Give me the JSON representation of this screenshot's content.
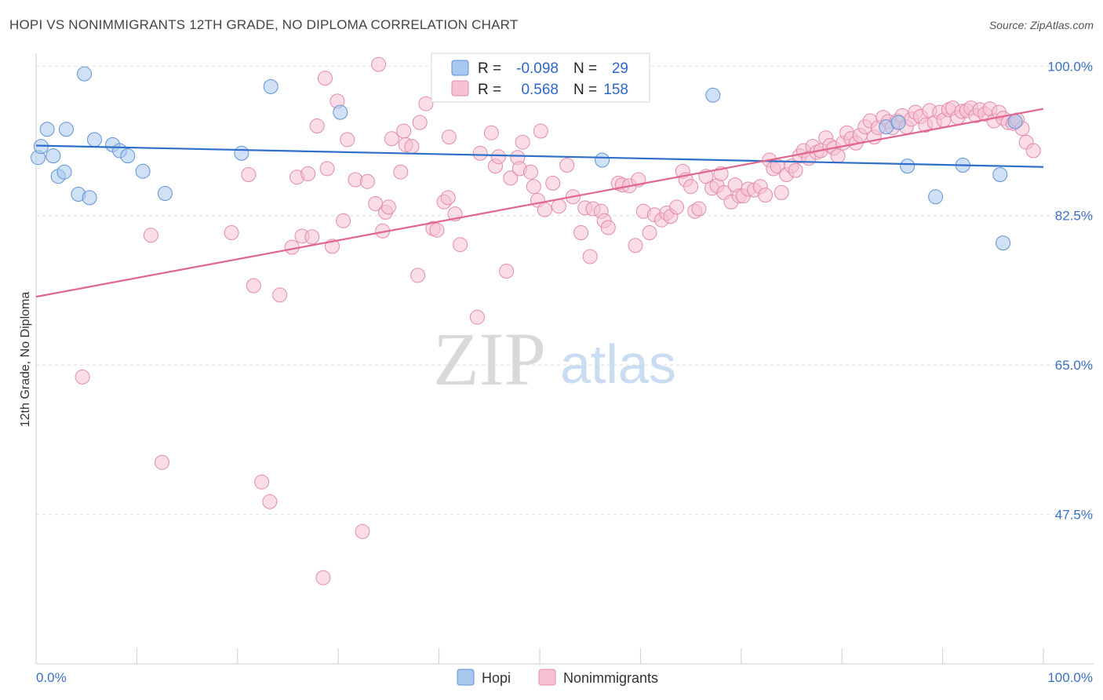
{
  "title": "HOPI VS NONIMMIGRANTS 12TH GRADE, NO DIPLOMA CORRELATION CHART",
  "source": "Source: ZipAtlas.com",
  "watermark": {
    "part1": "ZIP",
    "part2": "atlas"
  },
  "colors": {
    "hopi_fill": "#a9c8ef",
    "hopi_stroke": "#5f92d6",
    "hopi_line": "#2f6fcc",
    "non_fill": "#f6c1d2",
    "non_stroke": "#e38aaa",
    "non_line": "#e0668f",
    "tick_text": "#3b6fc4",
    "grid": "#dddddd"
  },
  "legend": {
    "rows": [
      {
        "r_label": "R =",
        "r_value": "-0.098",
        "n_label": "N =",
        "n_value": "29"
      },
      {
        "r_label": "R =",
        "r_value": "0.568",
        "n_label": "N =",
        "n_value": "158"
      }
    ]
  },
  "bottom_legend": [
    "Hopi",
    "Nonimmigrants"
  ],
  "chart_data": {
    "type": "scatter",
    "title": "HOPI VS NONIMMIGRANTS 12TH GRADE, NO DIPLOMA CORRELATION CHART",
    "xlabel": "",
    "ylabel": "12th Grade, No Diploma",
    "xlim": [
      0,
      100
    ],
    "ylim": [
      30,
      101.5
    ],
    "x_tick_labels": [
      "0.0%",
      "100.0%"
    ],
    "y_ticks": [
      100.0,
      82.5,
      65.0,
      47.5
    ],
    "y_tick_labels": [
      "100.0%",
      "82.5%",
      "65.0%",
      "47.5%"
    ],
    "grid": true,
    "legend_position": "top-center",
    "series": [
      {
        "name": "Hopi",
        "R": -0.098,
        "N": 29,
        "trend": {
          "x": [
            0,
            100
          ],
          "y": [
            90.7,
            88.2
          ]
        },
        "points": [
          [
            0.2,
            89.3
          ],
          [
            0.5,
            90.6
          ],
          [
            1.1,
            92.6
          ],
          [
            1.7,
            89.5
          ],
          [
            2.2,
            87.1
          ],
          [
            2.8,
            87.6
          ],
          [
            3.0,
            92.6
          ],
          [
            4.2,
            85.0
          ],
          [
            4.8,
            99.1
          ],
          [
            5.3,
            84.6
          ],
          [
            5.8,
            91.4
          ],
          [
            7.6,
            90.8
          ],
          [
            8.3,
            90.1
          ],
          [
            9.1,
            89.5
          ],
          [
            10.6,
            87.7
          ],
          [
            12.8,
            85.1
          ],
          [
            20.4,
            89.8
          ],
          [
            23.3,
            97.6
          ],
          [
            30.2,
            94.6
          ],
          [
            56.2,
            89.0
          ],
          [
            67.2,
            96.6
          ],
          [
            84.4,
            92.9
          ],
          [
            85.6,
            93.4
          ],
          [
            86.5,
            88.3
          ],
          [
            89.3,
            84.7
          ],
          [
            92.0,
            88.4
          ],
          [
            95.7,
            87.3
          ],
          [
            96.0,
            79.3
          ],
          [
            97.2,
            93.5
          ]
        ]
      },
      {
        "name": "Nonimmigrants",
        "R": 0.568,
        "N": 158,
        "trend": {
          "x": [
            0,
            100
          ],
          "y": [
            73.0,
            95.0
          ]
        },
        "points": [
          [
            4.6,
            63.6
          ],
          [
            11.4,
            80.2
          ],
          [
            12.5,
            53.6
          ],
          [
            19.4,
            80.5
          ],
          [
            21.1,
            87.3
          ],
          [
            21.6,
            74.3
          ],
          [
            22.4,
            51.3
          ],
          [
            23.2,
            49.0
          ],
          [
            24.2,
            73.2
          ],
          [
            25.4,
            78.8
          ],
          [
            25.9,
            87.0
          ],
          [
            26.4,
            80.1
          ],
          [
            27.0,
            87.4
          ],
          [
            27.4,
            80.0
          ],
          [
            27.9,
            93.0
          ],
          [
            28.5,
            40.1
          ],
          [
            28.7,
            98.6
          ],
          [
            28.9,
            88.0
          ],
          [
            29.4,
            78.9
          ],
          [
            29.9,
            95.9
          ],
          [
            30.5,
            81.9
          ],
          [
            30.9,
            91.4
          ],
          [
            31.7,
            86.7
          ],
          [
            32.4,
            45.5
          ],
          [
            32.9,
            86.5
          ],
          [
            33.7,
            83.9
          ],
          [
            34.0,
            100.2
          ],
          [
            34.4,
            80.7
          ],
          [
            34.7,
            82.9
          ],
          [
            35.0,
            83.5
          ],
          [
            35.3,
            91.5
          ],
          [
            36.2,
            87.6
          ],
          [
            36.5,
            92.4
          ],
          [
            36.7,
            90.8
          ],
          [
            37.3,
            90.6
          ],
          [
            37.9,
            75.5
          ],
          [
            38.1,
            93.4
          ],
          [
            38.7,
            95.6
          ],
          [
            39.4,
            81.0
          ],
          [
            39.8,
            80.8
          ],
          [
            40.5,
            84.1
          ],
          [
            40.9,
            84.6
          ],
          [
            41.0,
            91.7
          ],
          [
            41.6,
            82.7
          ],
          [
            42.1,
            79.1
          ],
          [
            43.8,
            70.6
          ],
          [
            44.1,
            89.8
          ],
          [
            45.2,
            92.2
          ],
          [
            45.6,
            88.3
          ],
          [
            45.9,
            89.4
          ],
          [
            46.7,
            76.0
          ],
          [
            47.1,
            86.9
          ],
          [
            47.8,
            89.3
          ],
          [
            48.0,
            88.0
          ],
          [
            48.3,
            91.1
          ],
          [
            49.1,
            87.6
          ],
          [
            49.4,
            85.9
          ],
          [
            49.8,
            84.3
          ],
          [
            50.1,
            92.4
          ],
          [
            50.5,
            83.2
          ],
          [
            51.3,
            86.3
          ],
          [
            51.9,
            83.6
          ],
          [
            52.7,
            88.4
          ],
          [
            53.3,
            84.7
          ],
          [
            54.1,
            80.5
          ],
          [
            54.5,
            83.4
          ],
          [
            55.0,
            77.7
          ],
          [
            55.3,
            83.3
          ],
          [
            56.1,
            83.0
          ],
          [
            56.4,
            81.9
          ],
          [
            56.8,
            81.1
          ],
          [
            57.8,
            86.3
          ],
          [
            58.2,
            86.1
          ],
          [
            58.9,
            86.0
          ],
          [
            59.5,
            79.0
          ],
          [
            59.8,
            86.7
          ],
          [
            60.3,
            83.0
          ],
          [
            60.9,
            80.5
          ],
          [
            61.4,
            82.6
          ],
          [
            62.1,
            82.0
          ],
          [
            62.6,
            82.8
          ],
          [
            63.0,
            82.4
          ],
          [
            63.6,
            83.5
          ],
          [
            64.2,
            87.7
          ],
          [
            64.5,
            86.7
          ],
          [
            65.0,
            85.9
          ],
          [
            65.4,
            83.0
          ],
          [
            65.8,
            83.3
          ],
          [
            66.5,
            87.1
          ],
          [
            67.1,
            85.7
          ],
          [
            67.6,
            86.0
          ],
          [
            68.0,
            87.4
          ],
          [
            68.3,
            85.2
          ],
          [
            69.0,
            84.1
          ],
          [
            69.4,
            86.1
          ],
          [
            69.8,
            84.8
          ],
          [
            70.2,
            84.8
          ],
          [
            70.7,
            85.6
          ],
          [
            71.3,
            85.5
          ],
          [
            71.9,
            85.9
          ],
          [
            72.4,
            84.9
          ],
          [
            72.8,
            89.0
          ],
          [
            73.2,
            88.0
          ],
          [
            73.6,
            88.3
          ],
          [
            74.0,
            85.2
          ],
          [
            74.5,
            87.3
          ],
          [
            75.0,
            88.3
          ],
          [
            75.4,
            87.8
          ],
          [
            75.8,
            89.5
          ],
          [
            76.2,
            90.1
          ],
          [
            76.7,
            89.2
          ],
          [
            77.1,
            90.6
          ],
          [
            77.5,
            89.9
          ],
          [
            77.9,
            90.1
          ],
          [
            78.4,
            91.6
          ],
          [
            78.8,
            90.7
          ],
          [
            79.2,
            90.4
          ],
          [
            79.6,
            89.5
          ],
          [
            80.1,
            91.0
          ],
          [
            80.5,
            92.2
          ],
          [
            80.9,
            91.5
          ],
          [
            81.4,
            91.0
          ],
          [
            81.8,
            91.9
          ],
          [
            82.3,
            92.9
          ],
          [
            82.8,
            93.6
          ],
          [
            83.2,
            91.7
          ],
          [
            83.6,
            92.8
          ],
          [
            84.1,
            94.0
          ],
          [
            84.6,
            93.5
          ],
          [
            85.0,
            92.8
          ],
          [
            85.5,
            93.6
          ],
          [
            86.0,
            94.2
          ],
          [
            86.4,
            92.9
          ],
          [
            86.9,
            93.8
          ],
          [
            87.3,
            94.6
          ],
          [
            87.8,
            94.1
          ],
          [
            88.3,
            93.1
          ],
          [
            88.7,
            94.8
          ],
          [
            89.2,
            93.4
          ],
          [
            89.7,
            94.6
          ],
          [
            90.1,
            93.7
          ],
          [
            90.6,
            94.9
          ],
          [
            91.0,
            95.1
          ],
          [
            91.5,
            94.0
          ],
          [
            91.9,
            94.7
          ],
          [
            92.4,
            94.8
          ],
          [
            92.8,
            95.1
          ],
          [
            93.3,
            94.2
          ],
          [
            93.7,
            94.9
          ],
          [
            94.2,
            94.4
          ],
          [
            94.7,
            95.0
          ],
          [
            95.1,
            93.6
          ],
          [
            95.6,
            94.6
          ],
          [
            96.0,
            93.9
          ],
          [
            96.5,
            93.4
          ],
          [
            97.0,
            93.3
          ],
          [
            97.4,
            93.7
          ],
          [
            97.9,
            92.7
          ],
          [
            98.3,
            91.1
          ],
          [
            99.0,
            90.1
          ]
        ]
      }
    ]
  }
}
